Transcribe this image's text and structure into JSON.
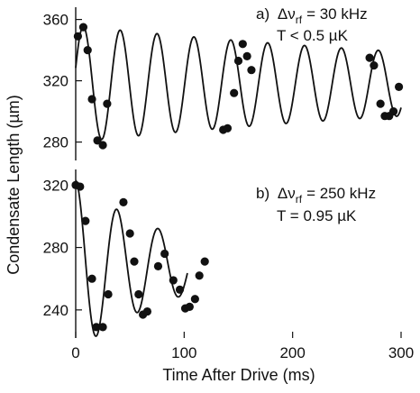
{
  "chart_data": [
    {
      "id": "a",
      "type": "scatter",
      "annotation": {
        "letter": "a)",
        "symbol": "Δν",
        "subscript": "rf",
        "value": "= 30 kHz",
        "line2": "T < 0.5 µK"
      },
      "xlim": [
        0,
        300
      ],
      "ylim": [
        268,
        368
      ],
      "yticks": [
        280,
        320,
        360
      ],
      "points": [
        [
          2,
          349
        ],
        [
          7,
          355
        ],
        [
          11,
          340
        ],
        [
          15,
          308
        ],
        [
          20,
          281
        ],
        [
          25,
          278
        ],
        [
          29,
          305
        ],
        [
          136,
          288
        ],
        [
          140,
          289
        ],
        [
          146,
          312
        ],
        [
          150,
          333
        ],
        [
          154,
          344
        ],
        [
          158,
          336
        ],
        [
          162,
          327
        ],
        [
          271,
          335
        ],
        [
          275,
          330
        ],
        [
          281,
          305
        ],
        [
          285,
          297
        ],
        [
          289,
          297
        ],
        [
          293,
          300
        ],
        [
          298,
          316
        ]
      ],
      "fit": {
        "mean": 318,
        "amplitude": 38,
        "end_amplitude": 21,
        "period": 34,
        "phase_ms": 7
      }
    },
    {
      "id": "b",
      "type": "scatter",
      "annotation": {
        "letter": "b)",
        "symbol": "Δν",
        "subscript": "rf",
        "value": "= 250 kHz",
        "line2": "T = 0.95 µK"
      },
      "xlim": [
        0,
        300
      ],
      "ylim": [
        222,
        330
      ],
      "yticks": [
        240,
        280,
        320
      ],
      "points": [
        [
          0,
          320
        ],
        [
          4,
          319
        ],
        [
          9,
          297
        ],
        [
          15,
          260
        ],
        [
          19,
          229
        ],
        [
          25,
          229
        ],
        [
          30,
          250
        ],
        [
          44,
          309
        ],
        [
          50,
          289
        ],
        [
          54,
          271
        ],
        [
          58,
          250
        ],
        [
          62,
          237
        ],
        [
          66,
          239
        ],
        [
          76,
          268
        ],
        [
          82,
          276
        ],
        [
          90,
          259
        ],
        [
          96,
          253
        ],
        [
          101,
          241
        ],
        [
          105,
          242
        ],
        [
          110,
          247
        ],
        [
          114,
          262
        ],
        [
          119,
          271
        ]
      ],
      "fit": {
        "mean": 268,
        "amplitude": 55,
        "end_amplitude": 18,
        "period": 38,
        "phase_ms": 0,
        "x_end": 103
      }
    }
  ],
  "x_axis": {
    "label": "Time After Drive (ms)",
    "ticks": [
      0,
      100,
      200,
      300
    ]
  },
  "y_axis": {
    "label": "Condensate Length (µm)"
  }
}
